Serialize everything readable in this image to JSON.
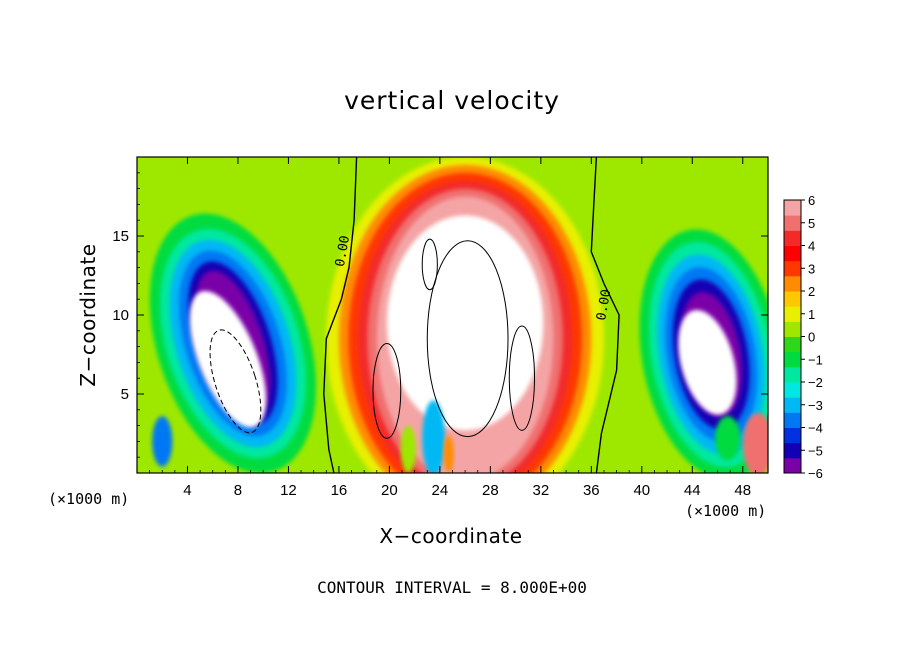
{
  "chart_data": {
    "type": "heatmap",
    "title": "vertical velocity",
    "xlabel": "X−coordinate",
    "ylabel": "Z−coordinate",
    "x_unit_left": "(×1000 m)",
    "x_unit_right": "(×1000 m)",
    "xlim": [
      0,
      50
    ],
    "ylim": [
      0,
      20
    ],
    "xticks": [
      4,
      8,
      12,
      16,
      20,
      24,
      28,
      32,
      36,
      40,
      44,
      48
    ],
    "yticks": [
      5,
      10,
      15
    ],
    "colorbar": {
      "min": -6,
      "max": 6,
      "ticks": [
        "6",
        "5",
        "4",
        "3",
        "2",
        "1",
        "0",
        "−1",
        "−2",
        "−3",
        "−4",
        "−5",
        "−6"
      ],
      "colors": [
        "#7a00a8",
        "#1400b4",
        "#0030e0",
        "#0078f4",
        "#00b8f4",
        "#00e8e0",
        "#00e8a0",
        "#00dc40",
        "#2cd818",
        "#9ee800",
        "#e8f000",
        "#ffc800",
        "#ff8c00",
        "#ff3800",
        "#ff0000",
        "#f22a2a",
        "#f07070",
        "#f4a4a4"
      ]
    },
    "contour_labels": [
      "0.00",
      "0.00"
    ],
    "contour_interval_note": "CONTOUR INTERVAL = 8.000E+00",
    "features": [
      {
        "name": "central updraft",
        "x": 26,
        "z": 9,
        "sign": "positive",
        "peak_above": 6
      },
      {
        "name": "left downdraft",
        "x": 7,
        "z": 8,
        "sign": "negative",
        "peak_below": -6
      },
      {
        "name": "right downdraft",
        "x": 45,
        "z": 7,
        "sign": "negative",
        "peak_below": -6
      }
    ]
  }
}
